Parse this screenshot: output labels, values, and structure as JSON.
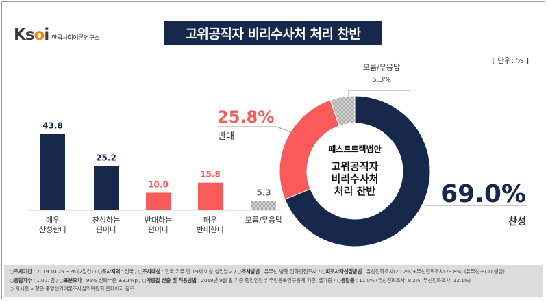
{
  "header": {
    "logo_mark": "Ksoi",
    "logo_sub": "한국사회여론연구소",
    "title": "고위공직자 비리수사처 처리 찬반",
    "unit": "[ 단위: % ]"
  },
  "colors": {
    "navy": "#16284c",
    "red": "#fb5a5a",
    "gray": "#bdbdbd",
    "label_gray": "#555555"
  },
  "chart_data": [
    {
      "type": "bar",
      "categories": [
        "매우\n찬성한다",
        "찬성하는\n편이다",
        "반대하는\n편이다",
        "매우\n반대한다",
        "모름/무응답"
      ],
      "values": [
        43.8,
        25.2,
        10.0,
        15.8,
        5.3
      ],
      "value_labels": [
        "43.8",
        "25.2",
        "10.0",
        "15.8",
        "5.3"
      ],
      "colors": [
        "#16284c",
        "#16284c",
        "#fb5a5a",
        "#fb5a5a",
        "#bdbdbd"
      ]
    },
    {
      "type": "pie",
      "donut": true,
      "center_text": [
        "패스트트랙법안",
        "고위공직자",
        "비리수사처",
        "처리 찬반"
      ],
      "slices": [
        {
          "label": "찬성",
          "value": 69.0,
          "value_label": "69.0%",
          "color": "#16284c"
        },
        {
          "label": "반대",
          "value": 25.8,
          "value_label": "25.8%",
          "color": "#fb5a5a"
        },
        {
          "label": "모름/무응답",
          "value": 5.3,
          "value_label": "5.3%",
          "color": "#bdbdbd"
        }
      ]
    }
  ],
  "footer": {
    "lines": [
      [
        {
          "k": "조사기간",
          "v": ": 2019.10.25.~26.(2일간)"
        },
        {
          "k": "조사지역",
          "v": ": 전국"
        },
        {
          "k": "조사대상",
          "v": ": 전국 거주 만 19세 이상 성인남녀"
        },
        {
          "k": "조사방법",
          "v": ": 유무선 병행 전화면접조사"
        },
        {
          "k": "피조사자선정방법",
          "v": ": 유선전화조사(20.2%)+무선전화조사(79.8%) (유무선-RDD 생성)"
        }
      ],
      [
        {
          "k": "응답자수",
          "v": ": 1,007명"
        },
        {
          "k": "표본오차",
          "v": ": 95% 신뢰수준 ±3.1%p"
        },
        {
          "k": "가중값 산출 및 적용방법",
          "v": ": 2019년 9월 말 기준 행정안전부 주민등록인구통계 기준, 셀가중"
        },
        {
          "k": "응답률",
          "v": ": 11.0% (유선전화조사: 8.2%, 무선전화조사: 12.1%)"
        }
      ],
      [
        {
          "k": "",
          "v": "자세한 사항은 중앙선거여론조사심의위원회 홈페이지 참조"
        }
      ]
    ]
  }
}
